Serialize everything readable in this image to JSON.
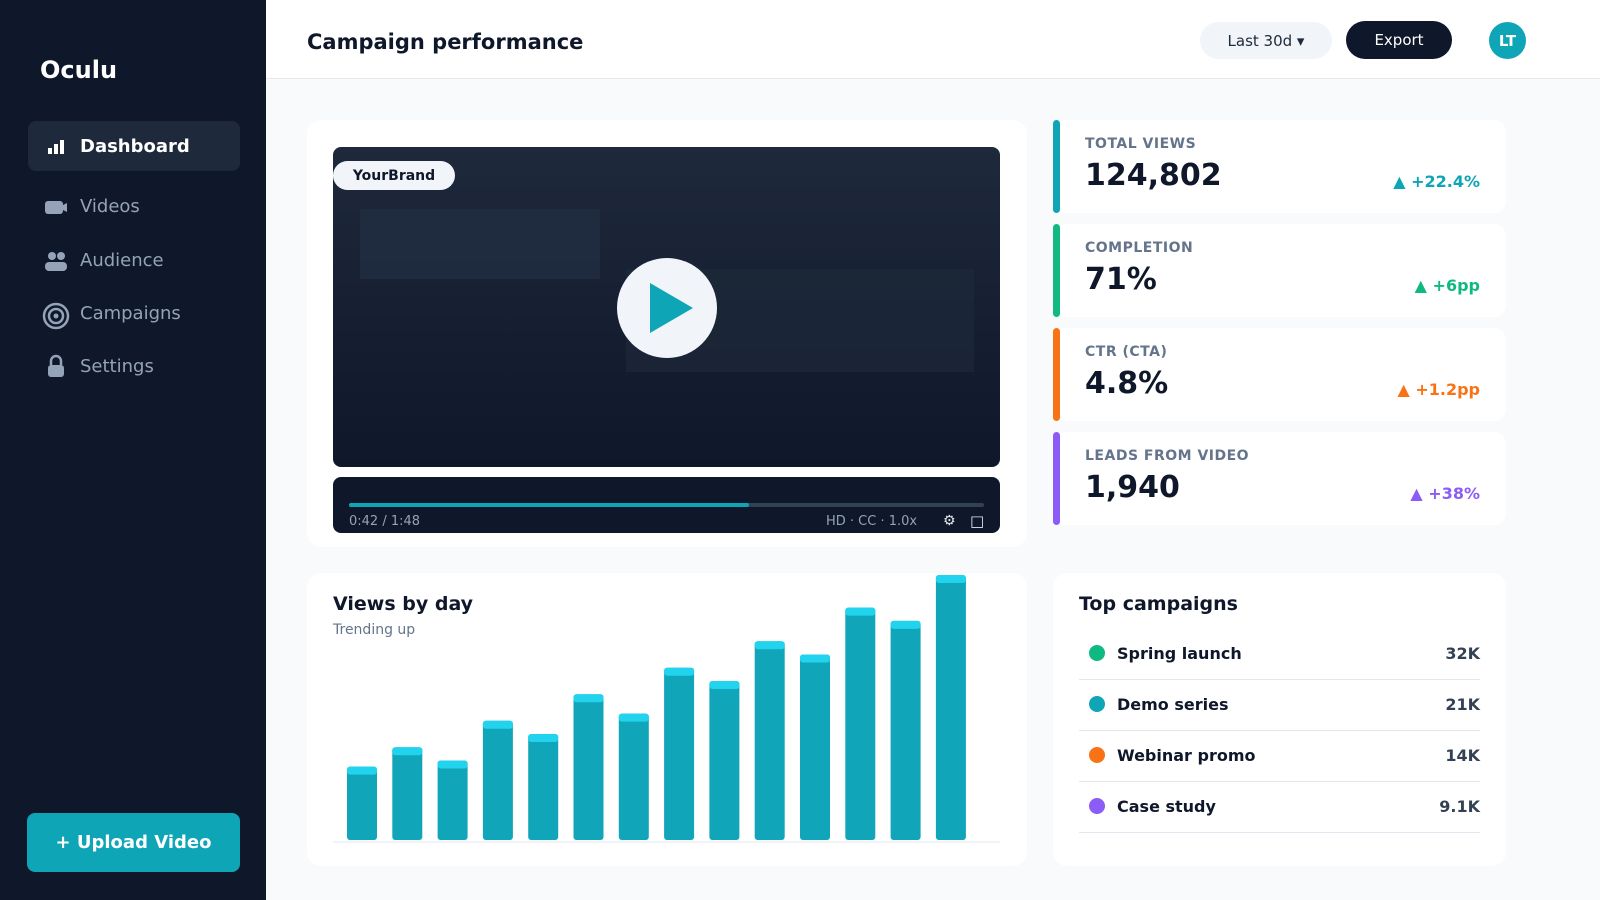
{
  "sidebar": {
    "brand": "Oculu",
    "nav": [
      "Dashboard",
      "Videos",
      "Audience",
      "Campaigns",
      "Settings"
    ],
    "upload": "+ Upload Video"
  },
  "header": {
    "title": "Campaign performance",
    "range": "Last 30d ▾",
    "export": "Export",
    "avatar": "LT"
  },
  "video": {
    "brand": "YourBrand",
    "time": "0:42 / 1:48",
    "settings": "HD · CC · 1.0x",
    "gear": "⚙",
    "fullscreen": "□"
  },
  "kpis": [
    {
      "label": "TOTAL VIEWS",
      "value": "124,802",
      "delta": "▲ +22.4%",
      "color": "#0ea5b7"
    },
    {
      "label": "COMPLETION",
      "value": "71%",
      "delta": "▲ +6pp",
      "color": "#10b981"
    },
    {
      "label": "CTR (CTA)",
      "value": "4.8%",
      "delta": "▲ +1.2pp",
      "color": "#f97316"
    },
    {
      "label": "LEADS FROM VIDEO",
      "value": "1,940",
      "delta": "▲ +38%",
      "color": "#8b5cf6"
    }
  ],
  "chart_data": {
    "type": "bar",
    "title": "Views by day",
    "subtitle": "Trending up",
    "values": [
      72,
      91,
      78,
      117,
      104,
      143,
      124,
      169,
      156,
      195,
      182,
      228,
      215,
      260
    ],
    "color": "#10a5b8",
    "cap_color": "#22d3ee"
  },
  "campaigns": {
    "title": "Top campaigns",
    "rows": [
      {
        "name": "Spring launch",
        "value": "32K",
        "color": "#10b981"
      },
      {
        "name": "Demo series",
        "value": "21K",
        "color": "#0ea5b7"
      },
      {
        "name": "Webinar promo",
        "value": "14K",
        "color": "#f97316"
      },
      {
        "name": "Case study",
        "value": "9.1K",
        "color": "#8b5cf6"
      }
    ]
  }
}
